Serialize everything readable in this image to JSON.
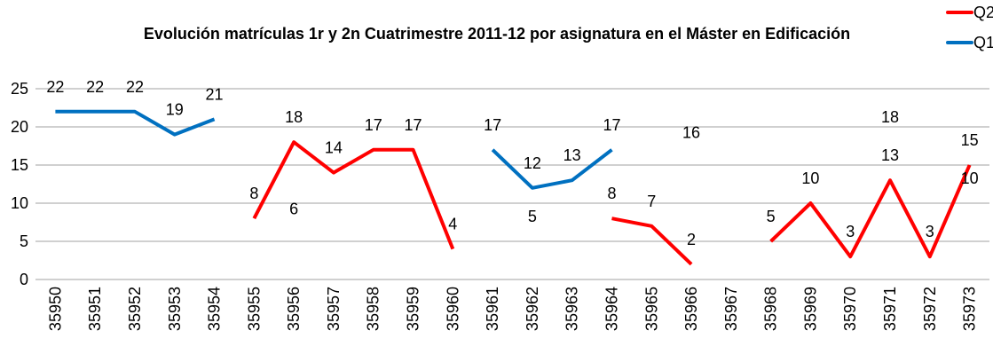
{
  "chart_data": {
    "type": "line",
    "title": "Evolución matrículas 1r y 2n Cuatrimestre 2011-12 por asignatura en el Máster en Edificación",
    "categories": [
      "35950",
      "35951",
      "35952",
      "35953",
      "35954",
      "35955",
      "35956",
      "35957",
      "35958",
      "35959",
      "35960",
      "35961",
      "35962",
      "35963",
      "35964",
      "35965",
      "35966",
      "35967",
      "35968",
      "35969",
      "35970",
      "35971",
      "35972",
      "35973"
    ],
    "series": [
      {
        "name": "Q2",
        "color": "#ff0000",
        "values": [
          null,
          null,
          null,
          null,
          null,
          8,
          18,
          14,
          17,
          17,
          4,
          null,
          5,
          null,
          8,
          7,
          2,
          null,
          5,
          10,
          3,
          13,
          3,
          15
        ]
      },
      {
        "name": "Q1",
        "color": "#0070c0",
        "values": [
          22,
          22,
          22,
          19,
          21,
          null,
          6,
          null,
          null,
          null,
          null,
          17,
          12,
          13,
          17,
          null,
          16,
          null,
          null,
          null,
          null,
          18,
          null,
          10
        ]
      }
    ],
    "ylim": [
      0,
      25
    ],
    "yticks": [
      0,
      5,
      10,
      15,
      20,
      25
    ],
    "grid": true,
    "legend": "top-right"
  }
}
